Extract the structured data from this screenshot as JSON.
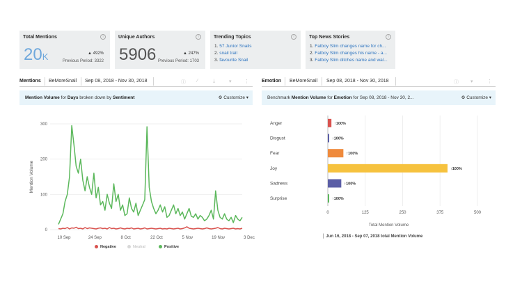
{
  "cards": {
    "total_mentions": {
      "title": "Total Mentions",
      "value": "20",
      "unit": "K",
      "change": "▲ 492%",
      "previous": "Previous Period: 3322"
    },
    "unique_authors": {
      "title": "Unique Authors",
      "value": "5906",
      "change": "▲ 247%",
      "previous": "Previous Period: 1703"
    },
    "trending_topics": {
      "title": "Trending Topics",
      "items": [
        {
          "n": "1.",
          "text": "57 Junior Snails"
        },
        {
          "n": "2.",
          "text": "snail trail"
        },
        {
          "n": "3.",
          "text": "favourite Snail"
        }
      ]
    },
    "top_news": {
      "title": "Top News Stories",
      "items": [
        {
          "n": "1.",
          "text": "Fatboy Slim changes name for ch..."
        },
        {
          "n": "2.",
          "text": "Fatboy Slim changes his name - a..."
        },
        {
          "n": "3.",
          "text": "Fatboy Slim ditches name and wal..."
        }
      ]
    }
  },
  "left_panel": {
    "tab": "Mentions",
    "query": "BeMoreSnail",
    "range": "Sep 08, 2018 - Nov 30, 2018",
    "subhead_prefix": "Mention Volume",
    "subhead_mid1": " for ",
    "subhead_b2": "Days",
    "subhead_mid2": " broken down by ",
    "subhead_b3": "Sentiment",
    "customize": "⚙ Customize ▾"
  },
  "right_panel": {
    "tab": "Emotion",
    "query": "BeMoreSnail",
    "range": "Sep 08, 2018 - Nov 30, 2018",
    "subhead_prefix": "Benchmark ",
    "subhead_b1": "Mention Volume",
    "subhead_mid1": " for ",
    "subhead_b2": "Emotion",
    "subhead_mid2": " for Sep 08, 2018 - Nov 30, 2...",
    "customize": "⚙ Customize ▾",
    "footnote": "Jun 16, 2018 - Sep 07, 2018 total Mention Volume"
  },
  "colors": {
    "negative": "#d9534f",
    "neutral": "#d8d8d8",
    "positive": "#5cb85c",
    "anger": "#d9534f",
    "disgust": "#5b5ea6",
    "fear": "#ef8a3c",
    "joy": "#f6c23e",
    "sadness": "#5b5ea6",
    "surprise": "#5cb85c"
  },
  "chart_data": [
    {
      "type": "line",
      "ylabel": "Mention Volume",
      "ylim": [
        0,
        300
      ],
      "yticks": [
        0,
        100,
        200,
        300
      ],
      "xticks": [
        "10 Sep",
        "24 Sep",
        "8 Oct",
        "22 Oct",
        "5 Nov",
        "19 Nov",
        "3 Dec"
      ],
      "series": [
        {
          "name": "Negative",
          "values": [
            3,
            2,
            4,
            3,
            6,
            2,
            5,
            4,
            7,
            3,
            4,
            2,
            6,
            3,
            5,
            4,
            3,
            2,
            4,
            5,
            3,
            4,
            2,
            6,
            3,
            4,
            2,
            3,
            5,
            3,
            2,
            4,
            3,
            5,
            2,
            3,
            4,
            2,
            3,
            5,
            2,
            3,
            4,
            3,
            2,
            3,
            4,
            2,
            3,
            2,
            4,
            3,
            2,
            3,
            4,
            2,
            3,
            5,
            8,
            4,
            3,
            2,
            3,
            4,
            3,
            2,
            3,
            5,
            3,
            2,
            3,
            4,
            6,
            3,
            2,
            4,
            3,
            2,
            3,
            4,
            2,
            3,
            2,
            4
          ]
        },
        {
          "name": "Neutral",
          "values": []
        },
        {
          "name": "Positive",
          "values": [
            15,
            30,
            45,
            80,
            100,
            150,
            295,
            240,
            180,
            160,
            200,
            140,
            110,
            150,
            120,
            100,
            160,
            90,
            120,
            70,
            80,
            55,
            100,
            75,
            60,
            130,
            80,
            100,
            55,
            70,
            40,
            45,
            90,
            60,
            50,
            75,
            40,
            55,
            70,
            85,
            292,
            120,
            80,
            60,
            45,
            55,
            70,
            50,
            65,
            35,
            40,
            55,
            70,
            45,
            60,
            40,
            50,
            30,
            45,
            60,
            38,
            35,
            45,
            30,
            40,
            35,
            25,
            30,
            40,
            55,
            30,
            110,
            55,
            35,
            30,
            45,
            30,
            25,
            35,
            20,
            40,
            30,
            25,
            35
          ]
        }
      ]
    },
    {
      "type": "bar",
      "orientation": "horizontal",
      "xlabel": "Total Mention Volume",
      "xlim": [
        0,
        500
      ],
      "xticks": [
        0,
        125,
        250,
        375,
        500
      ],
      "categories": [
        "Anger",
        "Disgust",
        "Fear",
        "Joy",
        "Sadness",
        "Surprise"
      ],
      "values": [
        12,
        3,
        52,
        400,
        45,
        4
      ],
      "labels": [
        "↑100%",
        "↑100%",
        "↑100%",
        "↑100%",
        "↑100%",
        "↑100%"
      ]
    }
  ]
}
